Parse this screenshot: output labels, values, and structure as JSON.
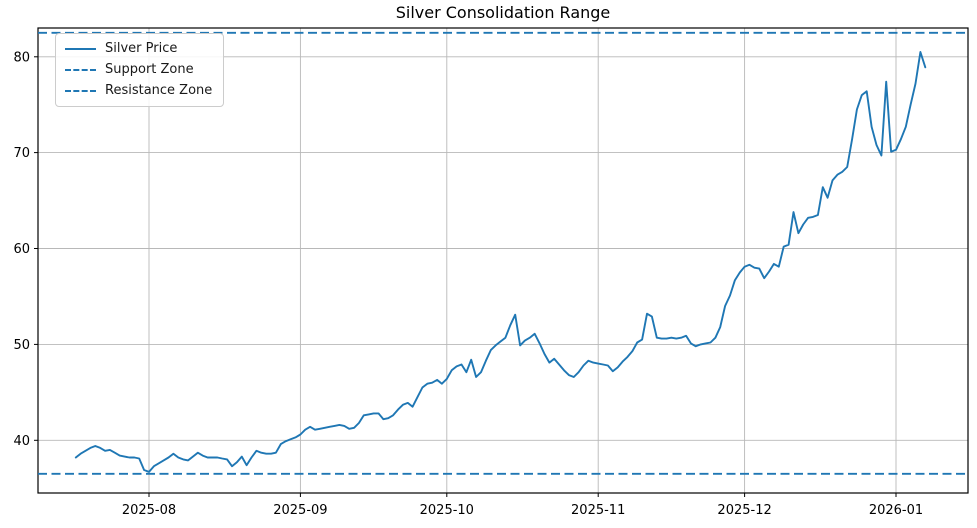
{
  "colors": {
    "line": "#1f77b4",
    "support_line": "#1f77b4",
    "resistance_line": "#1f77b4",
    "grid": "#b8b8b8",
    "spine": "#000000",
    "background": "#ffffff",
    "tick_text": "#000000"
  },
  "legend": [
    {
      "label": "Silver Price",
      "style": "solid"
    },
    {
      "label": "Support Zone",
      "style": "dashed"
    },
    {
      "label": "Resistance Zone",
      "style": "dashed"
    }
  ],
  "chart_data": {
    "type": "line",
    "title": "Silver Consolidation Range",
    "xlabel": "",
    "ylabel": "",
    "grid": true,
    "legend_position": "upper left",
    "x_tick_labels": [
      "2025-08",
      "2025-09",
      "2025-10",
      "2025-11",
      "2025-12",
      "2026-01"
    ],
    "y_ticks": [
      40,
      50,
      60,
      70,
      80
    ],
    "ylim": [
      34.5,
      83.0
    ],
    "support_zone": 36.5,
    "resistance_zone": 82.5,
    "series": [
      {
        "name": "Silver Price",
        "start_date": "2025-07-17",
        "frequency": "daily",
        "values": [
          38.2,
          38.6,
          38.9,
          39.2,
          39.4,
          39.2,
          38.9,
          39.0,
          38.7,
          38.4,
          38.3,
          38.2,
          38.2,
          38.1,
          36.9,
          36.7,
          37.3,
          37.6,
          37.9,
          38.2,
          38.6,
          38.2,
          38.0,
          37.9,
          38.3,
          38.7,
          38.4,
          38.2,
          38.2,
          38.2,
          38.1,
          38.0,
          37.3,
          37.7,
          38.3,
          37.4,
          38.2,
          38.9,
          38.7,
          38.6,
          38.6,
          38.7,
          39.6,
          39.9,
          40.1,
          40.3,
          40.6,
          41.1,
          41.4,
          41.1,
          41.2,
          41.3,
          41.4,
          41.5,
          41.6,
          41.5,
          41.2,
          41.3,
          41.8,
          42.6,
          42.7,
          42.8,
          42.8,
          42.2,
          42.3,
          42.6,
          43.2,
          43.7,
          43.9,
          43.5,
          44.5,
          45.5,
          45.9,
          46.0,
          46.3,
          45.9,
          46.4,
          47.3,
          47.7,
          47.9,
          47.1,
          48.4,
          46.6,
          47.1,
          48.3,
          49.4,
          49.9,
          50.3,
          50.7,
          52.0,
          53.1,
          49.9,
          50.4,
          50.7,
          51.1,
          50.1,
          49.0,
          48.1,
          48.5,
          47.9,
          47.3,
          46.8,
          46.6,
          47.1,
          47.8,
          48.3,
          48.1,
          48.0,
          47.9,
          47.8,
          47.2,
          47.6,
          48.2,
          48.7,
          49.3,
          50.2,
          50.5,
          53.2,
          52.9,
          50.7,
          50.6,
          50.6,
          50.7,
          50.6,
          50.7,
          50.9,
          50.1,
          49.8,
          50.0,
          50.1,
          50.2,
          50.7,
          51.8,
          54.0,
          55.1,
          56.7,
          57.5,
          58.1,
          58.3,
          58.0,
          57.9,
          56.9,
          57.6,
          58.4,
          58.1,
          60.2,
          60.4,
          63.8,
          61.6,
          62.5,
          63.2,
          63.3,
          63.5,
          66.4,
          65.3,
          67.1,
          67.7,
          68.0,
          68.5,
          71.4,
          74.5,
          76.0,
          76.4,
          72.7,
          70.8,
          69.7,
          77.4,
          70.1,
          70.3,
          71.4,
          72.7,
          75.0,
          77.2,
          80.5,
          78.9
        ]
      }
    ]
  }
}
